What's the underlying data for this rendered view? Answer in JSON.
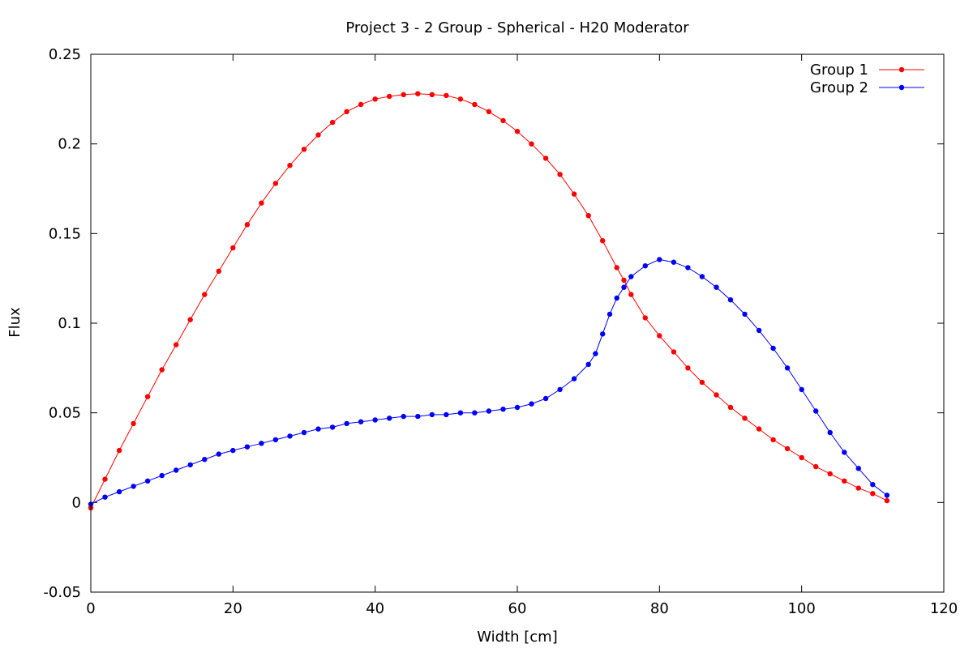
{
  "chart_data": {
    "type": "line",
    "title": "Project 3 - 2 Group - Spherical - H20 Moderator",
    "xlabel": "Width [cm]",
    "ylabel": "Flux",
    "xlim": [
      0,
      120
    ],
    "ylim": [
      -0.05,
      0.25
    ],
    "x_ticks": [
      0,
      20,
      40,
      60,
      80,
      100,
      120
    ],
    "y_ticks": [
      -0.05,
      0,
      0.05,
      0.1,
      0.15,
      0.2,
      0.25
    ],
    "x_tick_labels": [
      "0",
      "20",
      "40",
      "60",
      "80",
      "100",
      "120"
    ],
    "y_tick_labels": [
      "-0.05",
      "0",
      "0.05",
      "0.1",
      "0.15",
      "0.2",
      "0.25"
    ],
    "grid": false,
    "legend_position": "top-right",
    "series": [
      {
        "name": "Group 1",
        "color": "#ff0000",
        "marker": "circle",
        "x": [
          0,
          2,
          4,
          6,
          8,
          10,
          12,
          14,
          16,
          18,
          20,
          22,
          24,
          26,
          28,
          30,
          32,
          34,
          36,
          38,
          40,
          42,
          44,
          46,
          48,
          50,
          52,
          54,
          56,
          58,
          60,
          62,
          64,
          66,
          68,
          70,
          72,
          74,
          75,
          76,
          78,
          80,
          82,
          84,
          86,
          88,
          90,
          92,
          94,
          96,
          98,
          100,
          102,
          104,
          106,
          108,
          110,
          112
        ],
        "values": [
          -0.003,
          0.013,
          0.029,
          0.044,
          0.059,
          0.074,
          0.088,
          0.102,
          0.116,
          0.129,
          0.142,
          0.155,
          0.167,
          0.178,
          0.188,
          0.197,
          0.205,
          0.212,
          0.218,
          0.222,
          0.225,
          0.2265,
          0.2275,
          0.228,
          0.2275,
          0.227,
          0.225,
          0.222,
          0.218,
          0.213,
          0.207,
          0.2,
          0.192,
          0.183,
          0.172,
          0.16,
          0.146,
          0.131,
          0.124,
          0.116,
          0.103,
          0.093,
          0.084,
          0.075,
          0.067,
          0.06,
          0.053,
          0.047,
          0.041,
          0.035,
          0.03,
          0.025,
          0.02,
          0.016,
          0.012,
          0.008,
          0.005,
          0.001
        ]
      },
      {
        "name": "Group 2",
        "color": "#0000ff",
        "marker": "circle",
        "x": [
          0,
          2,
          4,
          6,
          8,
          10,
          12,
          14,
          16,
          18,
          20,
          22,
          24,
          26,
          28,
          30,
          32,
          34,
          36,
          38,
          40,
          42,
          44,
          46,
          48,
          50,
          52,
          54,
          56,
          58,
          60,
          62,
          64,
          66,
          68,
          70,
          71,
          72,
          73,
          74,
          75,
          76,
          78,
          80,
          82,
          84,
          86,
          88,
          90,
          92,
          94,
          96,
          98,
          100,
          102,
          104,
          106,
          108,
          110,
          112
        ],
        "values": [
          -0.001,
          0.003,
          0.006,
          0.009,
          0.012,
          0.015,
          0.018,
          0.021,
          0.024,
          0.027,
          0.029,
          0.031,
          0.033,
          0.035,
          0.037,
          0.039,
          0.041,
          0.042,
          0.044,
          0.045,
          0.046,
          0.047,
          0.048,
          0.048,
          0.049,
          0.049,
          0.05,
          0.05,
          0.051,
          0.052,
          0.053,
          0.055,
          0.058,
          0.063,
          0.069,
          0.077,
          0.083,
          0.094,
          0.105,
          0.114,
          0.12,
          0.126,
          0.132,
          0.1355,
          0.134,
          0.131,
          0.126,
          0.12,
          0.113,
          0.105,
          0.096,
          0.086,
          0.075,
          0.063,
          0.051,
          0.039,
          0.028,
          0.019,
          0.01,
          0.004
        ]
      }
    ]
  }
}
